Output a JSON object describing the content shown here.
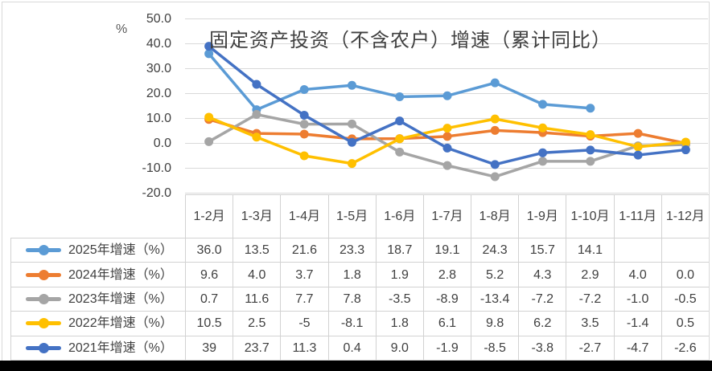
{
  "colors": {
    "grid": "#D9D9D9",
    "frame_border": "#D9D9D9",
    "table_border": "#D2D2D2",
    "text": "#404040",
    "background": "#FFFFFF",
    "bottom_bar": "#000000"
  },
  "chart_data": {
    "type": "line",
    "title": "固定资产投资（不含农户）增速（累计同比）",
    "ylabel": "%",
    "xlabel": "",
    "ylim": [
      -20,
      50
    ],
    "ytick_step": 10,
    "y_tick_labels": [
      "50.0",
      "40.0",
      "30.0",
      "20.0",
      "10.0",
      "0.0",
      "-10.0",
      "-20.0"
    ],
    "grid": true,
    "legend_position": "data-table-left",
    "categories": [
      "1-2月",
      "1-3月",
      "1-4月",
      "1-5月",
      "1-6月",
      "1-7月",
      "1-8月",
      "1-9月",
      "1-10月",
      "1-11月",
      "1-12月"
    ],
    "series": [
      {
        "name": "2025年增速（%）",
        "color": "#5B9BD5",
        "values": [
          36.0,
          13.5,
          21.6,
          23.3,
          18.7,
          19.1,
          24.3,
          15.7,
          14.1,
          null,
          null
        ],
        "display": [
          "36.0",
          "13.5",
          "21.6",
          "23.3",
          "18.7",
          "19.1",
          "24.3",
          "15.7",
          "14.1",
          "",
          ""
        ]
      },
      {
        "name": "2024年增速（%）",
        "color": "#ED7D31",
        "values": [
          9.6,
          4.0,
          3.7,
          1.8,
          1.9,
          2.8,
          5.2,
          4.3,
          2.9,
          4.0,
          0.0
        ],
        "display": [
          "9.6",
          "4.0",
          "3.7",
          "1.8",
          "1.9",
          "2.8",
          "5.2",
          "4.3",
          "2.9",
          "4.0",
          "0.0"
        ]
      },
      {
        "name": "2023年增速（%）",
        "color": "#A5A5A5",
        "values": [
          0.7,
          11.6,
          7.7,
          7.8,
          -3.5,
          -8.9,
          -13.4,
          -7.2,
          -7.2,
          -1.0,
          -0.5
        ],
        "display": [
          "0.7",
          "11.6",
          "7.7",
          "7.8",
          "-3.5",
          "-8.9",
          "-13.4",
          "-7.2",
          "-7.2",
          "-1.0",
          "-0.5"
        ]
      },
      {
        "name": "2022年增速（%）",
        "color": "#FFC000",
        "values": [
          10.5,
          2.5,
          -5,
          -8.1,
          1.8,
          6.1,
          9.8,
          6.2,
          3.5,
          -1.4,
          0.5
        ],
        "display": [
          "10.5",
          "2.5",
          "-5",
          "-8.1",
          "1.8",
          "6.1",
          "9.8",
          "6.2",
          "3.5",
          "-1.4",
          "0.5"
        ]
      },
      {
        "name": "2021年增速（%）",
        "color": "#4472C4",
        "values": [
          39,
          23.7,
          11.3,
          0.4,
          9.0,
          -1.9,
          -8.5,
          -3.8,
          -2.7,
          -4.7,
          -2.6
        ],
        "display": [
          "39",
          "23.7",
          "11.3",
          "0.4",
          "9.0",
          "-1.9",
          "-8.5",
          "-3.8",
          "-2.7",
          "-4.7",
          "-2.6"
        ]
      }
    ]
  }
}
